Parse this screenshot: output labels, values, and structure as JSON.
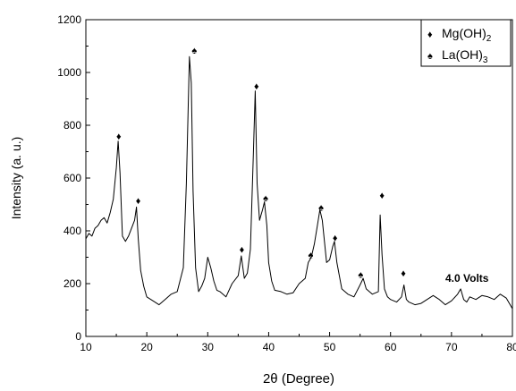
{
  "chart_data": {
    "type": "line",
    "xlabel": "2θ (Degree)",
    "ylabel": "Intensity (a. u.)",
    "xlim": [
      10,
      80
    ],
    "ylim": [
      0,
      1200
    ],
    "x_ticks": [
      10,
      20,
      30,
      40,
      50,
      60,
      70,
      80
    ],
    "y_ticks": [
      0,
      200,
      400,
      600,
      800,
      1000,
      1200
    ],
    "grid": false,
    "legend_position": "top-right",
    "annotation": "4.0 Volts",
    "legend": [
      {
        "marker": "♦",
        "label": "Mg(OH)",
        "sub": "2"
      },
      {
        "marker": "♠",
        "label": "La(OH)",
        "sub": "3"
      }
    ],
    "series": [
      {
        "x": [
          10,
          10.5,
          11,
          11.5,
          12,
          12.5,
          13,
          13.5,
          14,
          14.5,
          15,
          15.3,
          15.6,
          16,
          16.5,
          17,
          17.5,
          18,
          18.3,
          18.6,
          19,
          19.5,
          20,
          21,
          22,
          23,
          24,
          25,
          26,
          26.5,
          27,
          27.3,
          27.6,
          28,
          28.5,
          29,
          29.5,
          30,
          30.5,
          31,
          31.5,
          32,
          33,
          34,
          35,
          35.5,
          36,
          36.5,
          37,
          37.5,
          37.8,
          38.1,
          38.5,
          39,
          39.3,
          39.7,
          40,
          40.5,
          41,
          42,
          43,
          44,
          45,
          46,
          46.5,
          47,
          47.5,
          48,
          48.4,
          48.8,
          49.5,
          50,
          50.5,
          50.8,
          51.2,
          52,
          53,
          54,
          55,
          55.5,
          56,
          57,
          58,
          58.3,
          58.6,
          59,
          59.5,
          60,
          61,
          61.8,
          62.2,
          62.6,
          63,
          64,
          65,
          66,
          67,
          68,
          69,
          70,
          71,
          71.5,
          72,
          72.5,
          73,
          74,
          75,
          76,
          77,
          78,
          79,
          80
        ],
        "y": [
          370,
          390,
          380,
          410,
          420,
          440,
          450,
          430,
          470,
          520,
          640,
          740,
          620,
          380,
          360,
          380,
          410,
          440,
          490,
          370,
          250,
          190,
          150,
          135,
          120,
          140,
          160,
          170,
          260,
          580,
          1060,
          960,
          550,
          260,
          170,
          190,
          220,
          300,
          260,
          210,
          175,
          170,
          150,
          200,
          230,
          305,
          220,
          240,
          330,
          700,
          930,
          580,
          440,
          480,
          510,
          420,
          280,
          210,
          175,
          170,
          160,
          165,
          200,
          220,
          280,
          300,
          350,
          420,
          480,
          440,
          280,
          290,
          340,
          360,
          280,
          180,
          160,
          150,
          195,
          220,
          180,
          160,
          170,
          460,
          310,
          180,
          150,
          140,
          130,
          150,
          195,
          140,
          130,
          120,
          125,
          140,
          155,
          140,
          120,
          135,
          160,
          180,
          140,
          130,
          150,
          140,
          155,
          150,
          140,
          160,
          145,
          105
        ]
      }
    ],
    "peaks": [
      {
        "x": 15.4,
        "y": 760,
        "phase": "Mg(OH)2"
      },
      {
        "x": 18.6,
        "y": 515,
        "phase": "Mg(OH)2"
      },
      {
        "x": 27.8,
        "y": 1085,
        "phase": "La(OH)3"
      },
      {
        "x": 35.6,
        "y": 330,
        "phase": "Mg(OH)2"
      },
      {
        "x": 38.0,
        "y": 950,
        "phase": "Mg(OH)2"
      },
      {
        "x": 39.5,
        "y": 525,
        "phase": "La(OH)3"
      },
      {
        "x": 46.9,
        "y": 310,
        "phase": "La(OH)3"
      },
      {
        "x": 48.6,
        "y": 490,
        "phase": "La(OH)3"
      },
      {
        "x": 50.9,
        "y": 375,
        "phase": "Mg(OH)2"
      },
      {
        "x": 55.1,
        "y": 235,
        "phase": "La(OH)3"
      },
      {
        "x": 58.6,
        "y": 535,
        "phase": "Mg(OH)2"
      },
      {
        "x": 62.1,
        "y": 240,
        "phase": "Mg(OH)2"
      }
    ]
  }
}
